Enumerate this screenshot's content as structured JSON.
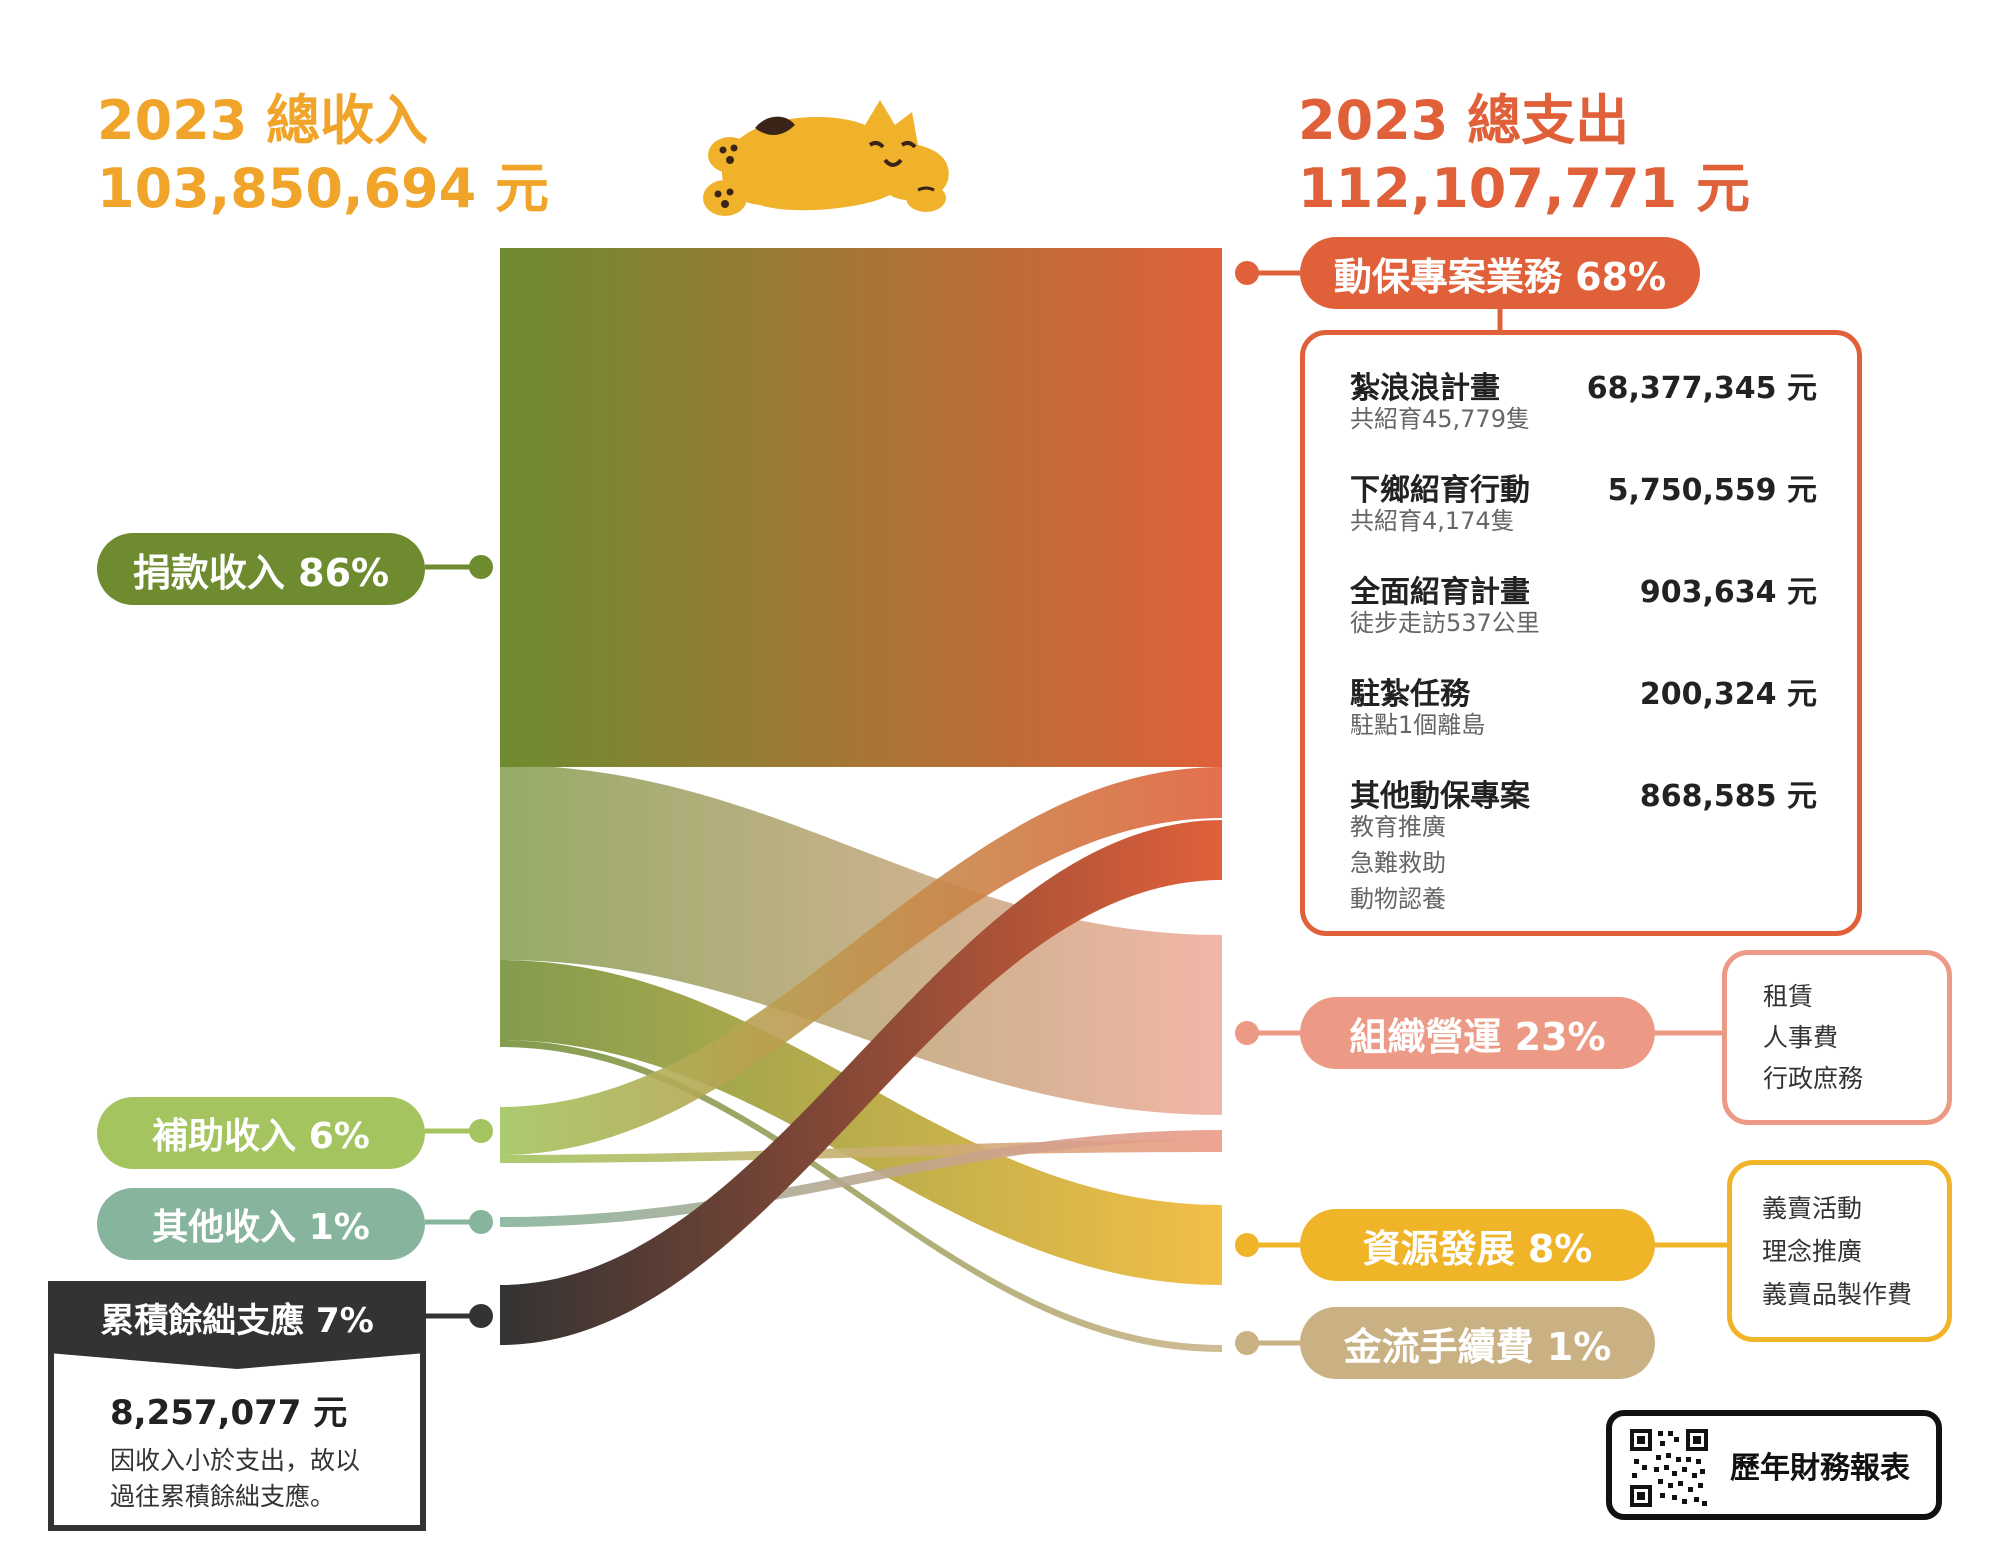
{
  "header": {
    "income_title": "2023 總收入",
    "income_amount": "103,850,694 元",
    "expense_title": "2023 總支出",
    "expense_amount": "112,107,771 元"
  },
  "colors": {
    "donation": "#6e8b2f",
    "subsidy": "#a3c45e",
    "other_income": "#86b49c",
    "reserve": "#333333",
    "project": "#e0603a",
    "operation": "#ec9a85",
    "resource": "#f0b429",
    "fee": "#c9b184"
  },
  "income_sources": [
    {
      "label": "捐款收入 86%"
    },
    {
      "label": "補助收入 6%"
    },
    {
      "label": "其他收入 1%"
    },
    {
      "label": "累積餘絀支應 7%"
    }
  ],
  "reserve_note": {
    "amount": "8,257,077 元",
    "line1": "因收入小於支出，故以",
    "line2": "過往累積餘絀支應。"
  },
  "expenses": [
    {
      "label": "動保專案業務 68%"
    },
    {
      "label": "組織營運 23%"
    },
    {
      "label": "資源發展 8%"
    },
    {
      "label": "金流手續費 1%"
    }
  ],
  "project_details": [
    {
      "name": "紮浪浪計畫",
      "amount": "68,377,345 元",
      "sub": [
        "共紹育45,779隻"
      ]
    },
    {
      "name": "下鄉紹育行動",
      "amount": "5,750,559 元",
      "sub": [
        "共紹育4,174隻"
      ]
    },
    {
      "name": "全面紹育計畫",
      "amount": "903,634 元",
      "sub": [
        "徒步走訪537公里"
      ]
    },
    {
      "name": "駐紮任務",
      "amount": "200,324 元",
      "sub": [
        "駐點1個離島"
      ]
    },
    {
      "name": "其他動保專案",
      "amount": "868,585 元",
      "sub": [
        "教育推廣",
        "急難救助",
        "動物認養"
      ]
    }
  ],
  "operation_items": [
    "租賃",
    "人事費",
    "行政庶務"
  ],
  "resource_items": [
    "義賣活動",
    "理念推廣",
    "義賣品製作費"
  ],
  "report_button": {
    "label": "歷年財務報表"
  }
}
